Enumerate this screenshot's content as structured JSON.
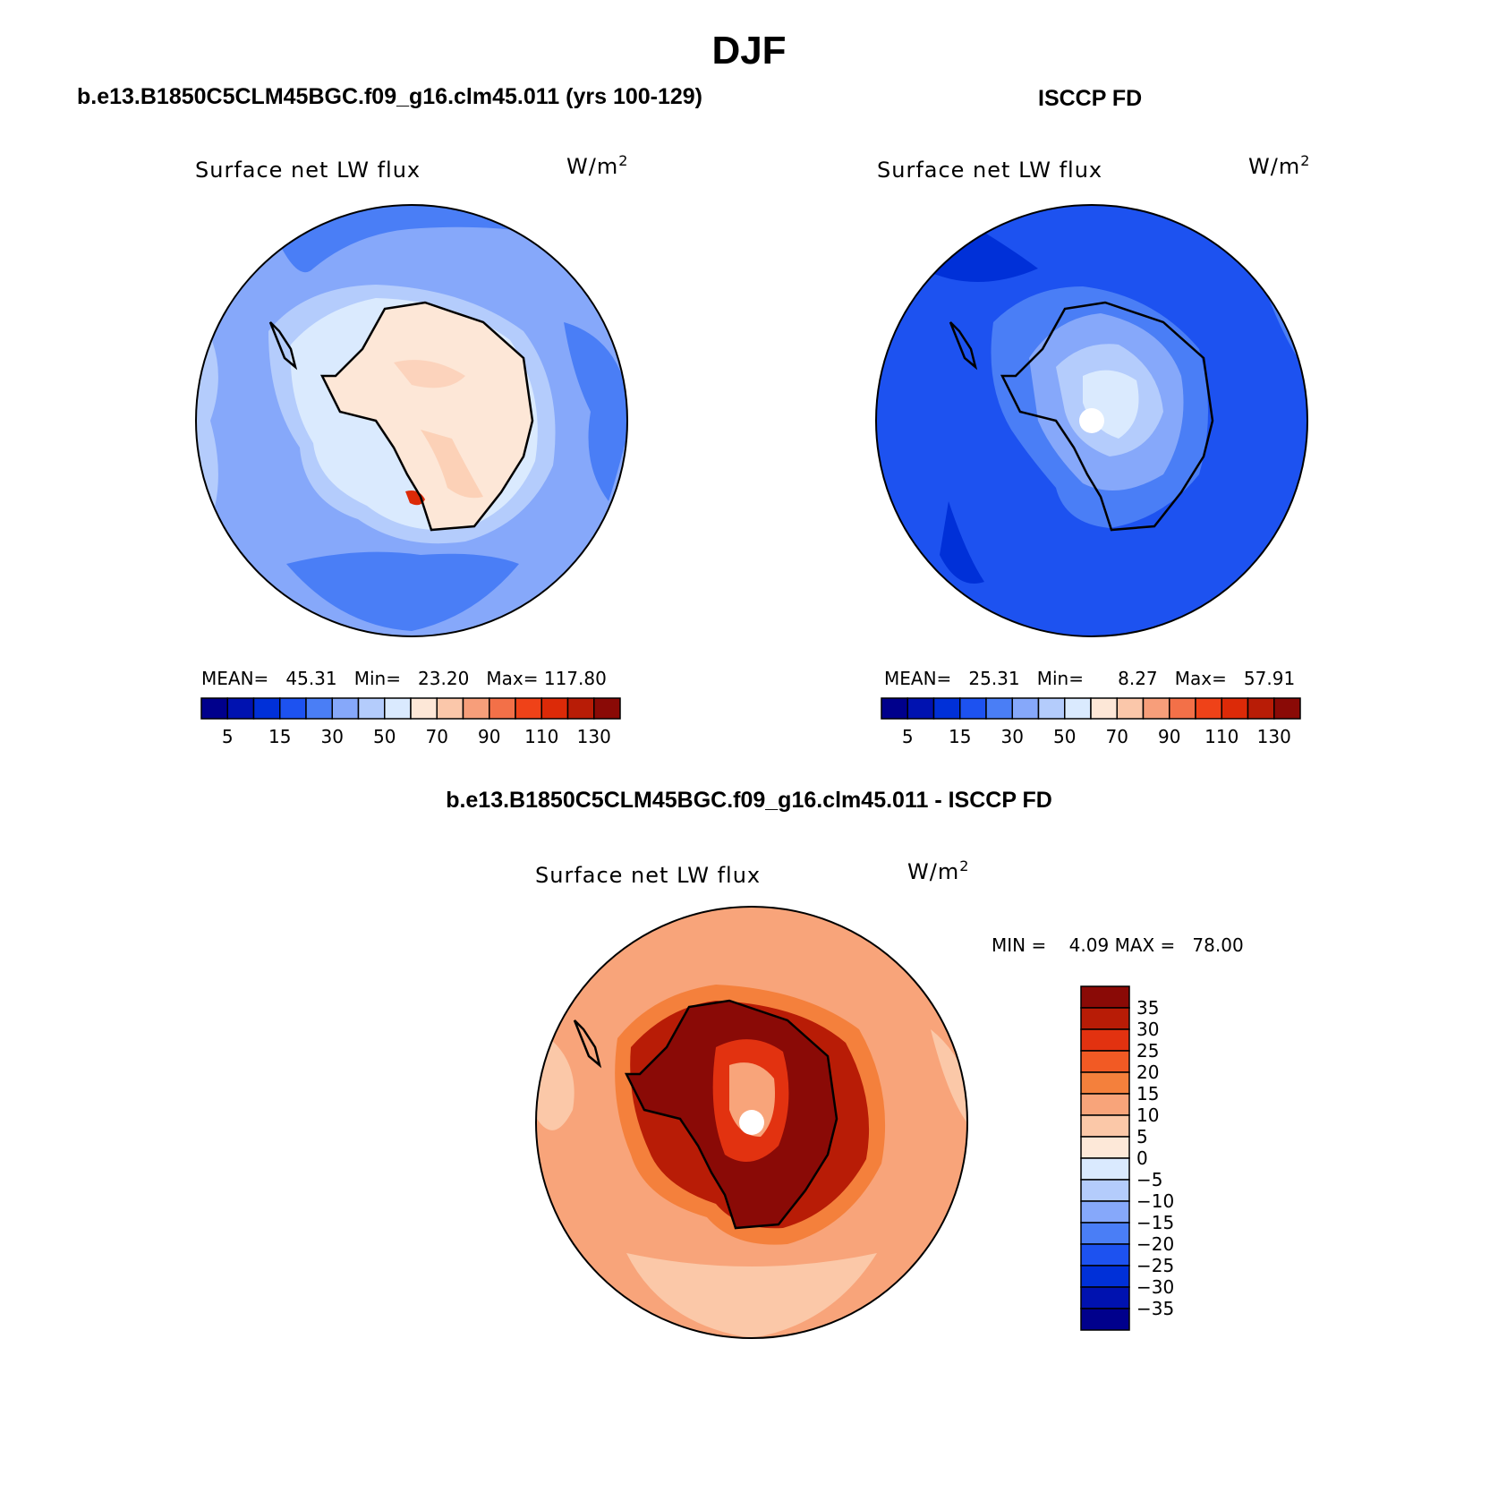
{
  "season_title": "DJF",
  "panels": {
    "left": {
      "case_title": "b.e13.B1850C5CLM45BGC.f09_g16.clm45.011 (yrs 100-129)",
      "variable": "Surface net LW flux",
      "units_base": "W/m",
      "units_exp": "2",
      "stats": {
        "mean_label": "MEAN=",
        "mean": "45.31",
        "min_label": "Min=",
        "min": "23.20",
        "max_label": "Max=",
        "max": "117.80"
      }
    },
    "right": {
      "case_title": "ISCCP FD",
      "variable": "Surface net LW flux",
      "units_base": "W/m",
      "units_exp": "2",
      "stats": {
        "mean_label": "MEAN=",
        "mean": "25.31",
        "min_label": "Min=",
        "min": "8.27",
        "max_label": "Max=",
        "max": "57.91"
      }
    },
    "diff": {
      "case_title": "b.e13.B1850C5CLM45BGC.f09_g16.clm45.011 - ISCCP FD",
      "variable": "Surface net LW flux",
      "units_base": "W/m",
      "units_exp": "2",
      "stats": {
        "min_label": "MIN =",
        "min": "4.09",
        "max_label": "MAX =",
        "max": "78.00"
      }
    }
  },
  "abs_colorbar": {
    "colors": [
      "#00008c",
      "#0012b0",
      "#0030d8",
      "#1d52f0",
      "#4a7ef6",
      "#86a8fa",
      "#b4ccfc",
      "#daeafe",
      "#fde7d7",
      "#fbc7aa",
      "#f79e7a",
      "#f37048",
      "#ef4218",
      "#dc2a08",
      "#b81c06",
      "#8a0a06"
    ],
    "labels": [
      "5",
      "15",
      "30",
      "50",
      "70",
      "90",
      "110",
      "130"
    ]
  },
  "diff_colorbar": {
    "colors": [
      "#8a0a06",
      "#b81c06",
      "#e23210",
      "#f25a24",
      "#f4803c",
      "#f8a47a",
      "#fbc8a8",
      "#fde8d8",
      "#daeafe",
      "#b4ccfc",
      "#86a8fa",
      "#4a7ef6",
      "#1d52f0",
      "#0030d8",
      "#0012b0",
      "#00008c"
    ],
    "labels": [
      "35",
      "30",
      "25",
      "20",
      "15",
      "10",
      "5",
      "0",
      "−5",
      "−10",
      "−15",
      "−20",
      "−25",
      "−30",
      "−35"
    ]
  }
}
